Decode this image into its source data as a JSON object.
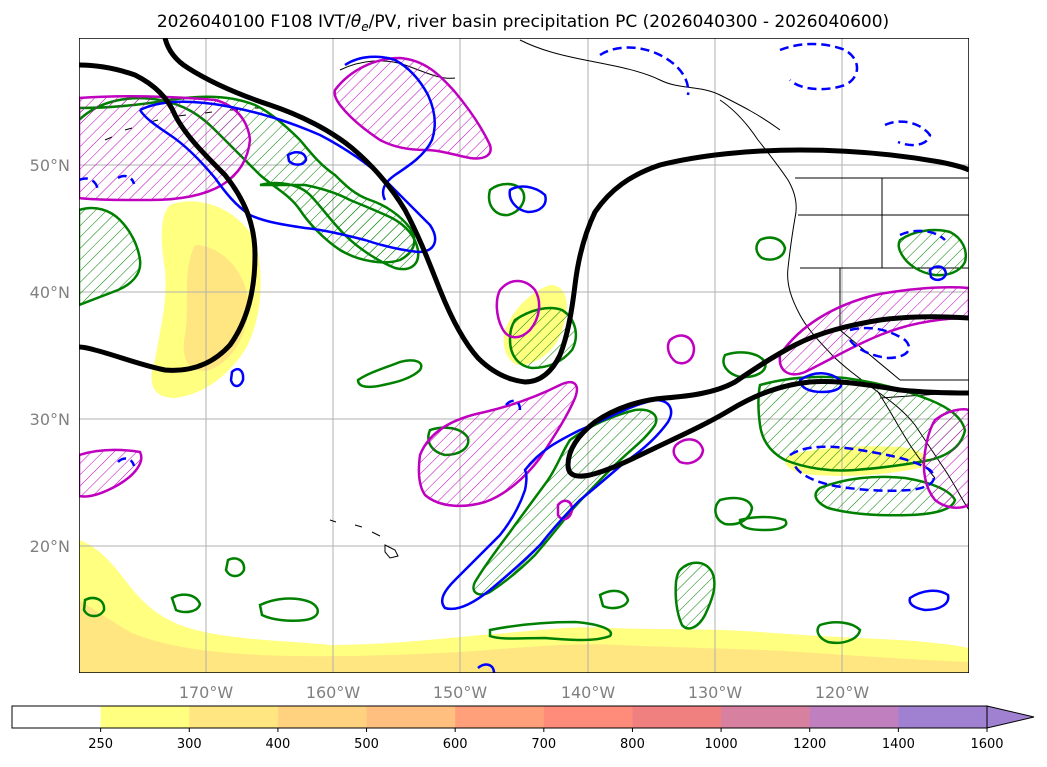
{
  "map": {
    "title": "2026040100 F108 IVT/θe/PV, river basin precipitation PC (2026040300 - 2026040600)",
    "title_parts": {
      "prefix": "2026040100 F108 IVT/",
      "theta": "θ",
      "subscript": "e",
      "suffix": "/PV, river basin precipitation PC (2026040300 - 2026040600)"
    },
    "extent": {
      "lon": [
        -180,
        -110
      ],
      "lat": [
        10,
        60
      ]
    },
    "lat_labels": [
      {
        "value": 50,
        "label": "50°N"
      },
      {
        "value": 40,
        "label": "40°N"
      },
      {
        "value": 30,
        "label": "30°N"
      },
      {
        "value": 20,
        "label": "20°N"
      }
    ],
    "lon_labels": [
      {
        "value": -170,
        "label": "170°W"
      },
      {
        "value": -160,
        "label": "160°W"
      },
      {
        "value": -150,
        "label": "150°W"
      },
      {
        "value": -140,
        "label": "140°W"
      },
      {
        "value": -130,
        "label": "130°W"
      },
      {
        "value": -120,
        "label": "120°W"
      }
    ],
    "grid": true,
    "contour_colors": {
      "pv_black": "#000000",
      "theta_e_blue": "#0000ff",
      "theta_e_blue_dashed": "#0000ff",
      "precip_green": "#008000",
      "ivt_magenta": "#bf00bf"
    }
  },
  "colorbar": {
    "ticks": [
      "250",
      "300",
      "400",
      "500",
      "600",
      "700",
      "800",
      "1000",
      "1200",
      "1400",
      "1600"
    ],
    "colors": [
      "#ffffff",
      "#ffff80",
      "#ffe680",
      "#ffd27f",
      "#ffbf7f",
      "#ffa07a",
      "#ff8c7a",
      "#f08080",
      "#d880a0",
      "#c080c0",
      "#a080d0"
    ],
    "extend": "max"
  }
}
